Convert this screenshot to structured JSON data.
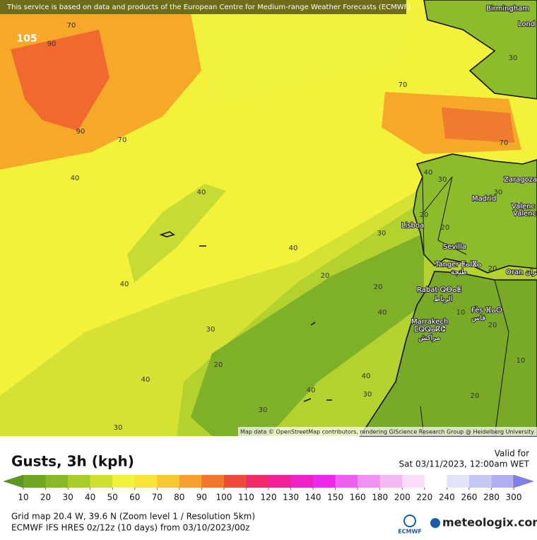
{
  "banner": "This service is based on data and products of the European Centre for Medium-range Weather Forecasts (ECMWF)",
  "attribution": "Map data © OpenStreetMap contributors, rendering GIScience Research Group @ Heidelberg University",
  "map": {
    "max_label": "105",
    "cities": [
      "Birmingham",
      "Lond",
      "Zaragoza",
      "Madrid",
      "Valenc",
      "Valenc",
      "Lisboa",
      "Sevilla",
      "Tanger ⵟⴰⵏⴵⴰ",
      "طنجة",
      "Oran وهران",
      "Rabat ⵕⴱⴰⵟ",
      "الرباط",
      "Fès ⴼⴰⵙ",
      "فاس",
      "Marrakech",
      "ⵎⵕⵕⴰⴽⵛ",
      "مراكش"
    ],
    "contour_labels": [
      70,
      90,
      90,
      70,
      40,
      40,
      70,
      70,
      30,
      40,
      30,
      20,
      20,
      40,
      40,
      30,
      20,
      40,
      30,
      30,
      40,
      30,
      20,
      10,
      20,
      20,
      30,
      30,
      40,
      20,
      10,
      20,
      40
    ]
  },
  "header": {
    "title": "Gusts, 3h (kph)",
    "valid_label": "Valid for",
    "valid_time": "Sat 03/11/2023, 12:00am WET"
  },
  "colorbar": {
    "ticks": [
      10,
      20,
      30,
      40,
      50,
      60,
      70,
      80,
      90,
      100,
      110,
      120,
      130,
      140,
      150,
      160,
      180,
      200,
      220,
      240,
      260,
      280,
      300
    ],
    "colors": [
      "#5c9a1c",
      "#6fa820",
      "#8ab926",
      "#a9cb2c",
      "#cfe032",
      "#f2f238",
      "#f8e436",
      "#f8c832",
      "#f5a02e",
      "#f2782e",
      "#ef4a3a",
      "#ef2a66",
      "#ef2098",
      "#ef20c8",
      "#ef28ee",
      "#f060f0",
      "#f290f2",
      "#f5b8f5",
      "#f8dcf8",
      "#ffffff",
      "#e2e2f8",
      "#c8c8f4",
      "#b0b0f0",
      "#9898ee",
      "#8080ec"
    ]
  },
  "footer": {
    "line1": "Grid map 20.4 W, 39.6 N (Zoom level 1 / Resolution 5km)",
    "line2": "ECMWF IFS HRES 0z/12z (10 days) from  03/10/2023/00z",
    "ecmwf": "ECMWF",
    "brand": "meteologix.com"
  }
}
